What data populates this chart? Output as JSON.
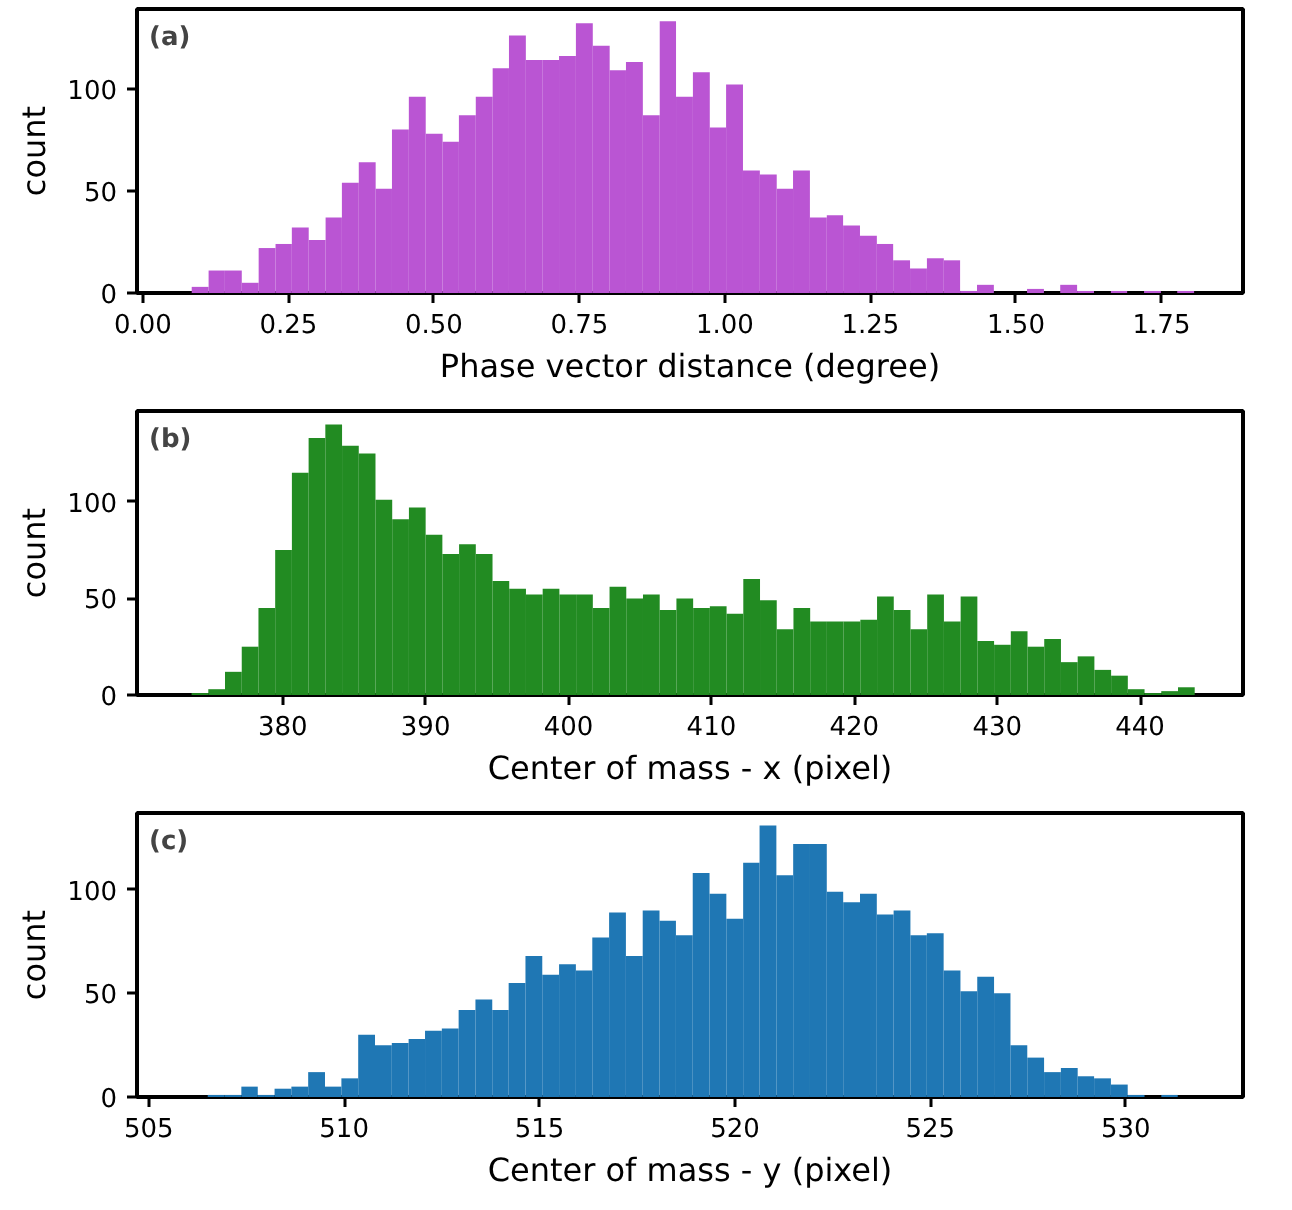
{
  "chart_data": [
    {
      "type": "histogram",
      "annotations": [
        "(a)"
      ],
      "xlabel": "Phase vector distance (degree)",
      "ylabel": "count",
      "color": "#ba55d3",
      "grid": false,
      "bins": [
        0.084,
        0.113,
        0.141,
        0.17,
        0.199,
        0.228,
        0.256,
        0.285,
        0.314,
        0.342,
        0.371,
        0.4,
        0.428,
        0.457,
        0.486,
        0.515,
        0.543,
        0.572,
        0.601,
        0.629,
        0.658,
        0.687,
        0.715,
        0.744,
        0.773,
        0.802,
        0.83,
        0.859,
        0.888,
        0.916,
        0.945,
        0.974,
        1.002,
        1.031,
        1.06,
        1.089,
        1.117,
        1.146,
        1.175,
        1.203,
        1.232,
        1.261,
        1.289,
        1.318,
        1.347,
        1.376,
        1.404,
        1.433,
        1.462,
        1.519,
        1.548,
        1.576,
        1.605,
        1.634,
        1.663,
        1.691,
        1.72,
        1.749,
        1.777,
        1.806
      ],
      "values": [
        3,
        11,
        11,
        5,
        22,
        24,
        32,
        26,
        37,
        54,
        64,
        51,
        80,
        96,
        78,
        74,
        87,
        96,
        110,
        126,
        114,
        114,
        116,
        132,
        121,
        109,
        113,
        87,
        133,
        96,
        108,
        81,
        102,
        60,
        58,
        51,
        60,
        37,
        38,
        33,
        28,
        24,
        16,
        12,
        17,
        16,
        1,
        4,
        0,
        2,
        0,
        4,
        1,
        0,
        1,
        0,
        1,
        0,
        1
      ],
      "xlim": [
        -0.01,
        1.89
      ],
      "ylim": [
        0,
        139
      ],
      "xticks": [
        {
          "value": 0,
          "label": "0.00"
        },
        0.25,
        {
          "value": 0.5,
          "label": "0.50"
        },
        0.75,
        {
          "value": 1,
          "label": "1.00"
        },
        1.25,
        {
          "value": 1.5,
          "label": "1.50"
        },
        1.75
      ],
      "yticks": [
        0,
        50,
        100
      ]
    },
    {
      "type": "histogram",
      "annotations": [
        "(b)"
      ],
      "xlabel": "Center of mass - x (pixel)",
      "ylabel": "count",
      "color": "#228b22",
      "grid": false,
      "bins": [
        373.62,
        374.79,
        375.96,
        377.13,
        378.3,
        379.47,
        380.64,
        381.81,
        382.98,
        384.15,
        385.32,
        386.49,
        387.66,
        388.83,
        390.0,
        391.17,
        392.34,
        393.51,
        394.68,
        395.85,
        397.02,
        398.19,
        399.36,
        400.53,
        401.7,
        402.87,
        404.04,
        405.21,
        406.38,
        407.55,
        408.72,
        409.89,
        411.06,
        412.23,
        413.4,
        414.57,
        415.74,
        416.91,
        418.08,
        419.25,
        420.42,
        421.59,
        422.76,
        423.93,
        425.1,
        426.27,
        427.44,
        428.61,
        429.78,
        430.95,
        432.12,
        433.29,
        434.46,
        435.63,
        436.8,
        437.97,
        439.14,
        440.31,
        441.48,
        442.65,
        443.82
      ],
      "values": [
        1,
        3,
        12,
        25,
        45,
        75,
        115,
        133,
        140,
        129,
        125,
        101,
        91,
        97,
        83,
        73,
        78,
        73,
        59,
        55,
        52,
        55,
        52,
        52,
        45,
        56,
        50,
        52,
        44,
        50,
        45,
        46,
        42,
        60,
        49,
        34,
        45,
        38,
        38,
        38,
        39,
        51,
        44,
        34,
        52,
        38,
        51,
        28,
        26,
        33,
        25,
        29,
        17,
        20,
        13,
        10,
        3,
        1,
        2,
        4
      ],
      "xlim": [
        369.8,
        447.2
      ],
      "ylim": [
        0,
        147
      ],
      "xticks": [
        380,
        390,
        400,
        410,
        420,
        430,
        440
      ],
      "yticks": [
        0,
        50,
        100
      ]
    },
    {
      "type": "histogram",
      "annotations": [
        "(c)"
      ],
      "xlabel": "Center of mass - y (pixel)",
      "ylabel": "count",
      "color": "#1f77b4",
      "grid": false,
      "bins": [
        506.51,
        506.94,
        507.37,
        507.79,
        508.22,
        508.65,
        509.08,
        509.51,
        509.93,
        510.36,
        510.79,
        511.22,
        511.65,
        512.07,
        512.5,
        512.93,
        513.36,
        513.79,
        514.21,
        514.64,
        515.07,
        515.5,
        515.93,
        516.35,
        516.78,
        517.21,
        517.64,
        518.07,
        518.49,
        518.92,
        519.35,
        519.78,
        520.21,
        520.63,
        521.06,
        521.49,
        521.92,
        522.35,
        522.77,
        523.2,
        523.63,
        524.06,
        524.49,
        524.91,
        525.34,
        525.77,
        526.2,
        526.63,
        527.05,
        527.48,
        527.91,
        528.34,
        528.77,
        529.19,
        529.62,
        530.05,
        530.48,
        530.91,
        531.33
      ],
      "values": [
        1,
        1,
        5,
        1,
        4,
        5,
        12,
        5,
        9,
        30,
        25,
        26,
        28,
        32,
        33,
        42,
        47,
        42,
        55,
        68,
        59,
        64,
        61,
        77,
        89,
        68,
        90,
        85,
        78,
        108,
        98,
        86,
        113,
        131,
        107,
        122,
        122,
        99,
        94,
        98,
        88,
        90,
        78,
        79,
        61,
        51,
        58,
        50,
        25,
        19,
        12,
        14,
        10,
        9,
        6,
        1,
        0,
        1
      ],
      "xlim": [
        504.7,
        533.0
      ],
      "ylim": [
        0,
        137
      ],
      "xticks": [
        505,
        510,
        515,
        520,
        525,
        530
      ],
      "yticks": [
        0,
        50,
        100
      ]
    }
  ]
}
